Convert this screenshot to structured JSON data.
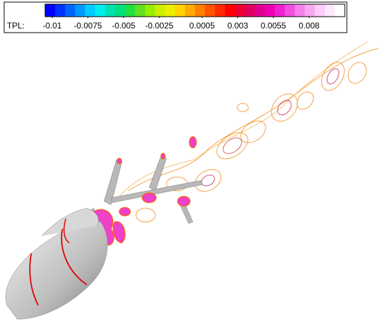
{
  "colorbar": {
    "label": "TPL:",
    "range": [
      -0.0105,
      0.0105
    ],
    "ticks": [
      -0.01,
      -0.0075,
      -0.005,
      -0.0025,
      0.0005,
      0.003,
      0.0055,
      0.008
    ],
    "colors": [
      "#0000ff",
      "#0033ff",
      "#0066ff",
      "#0099ff",
      "#00ccff",
      "#00eeee",
      "#00e0b0",
      "#00e080",
      "#20e040",
      "#60e020",
      "#99ee00",
      "#ccee00",
      "#eeee00",
      "#ffd400",
      "#ffaa00",
      "#ff8000",
      "#ff5500",
      "#ff2a00",
      "#ff0000",
      "#ee0030",
      "#e00060",
      "#e00090",
      "#ee00b0",
      "#f020d0",
      "#f050e0",
      "#f580ea",
      "#f8a8f2",
      "#fbcdf8",
      "#fde8fc",
      "#ffffff"
    ]
  }
}
